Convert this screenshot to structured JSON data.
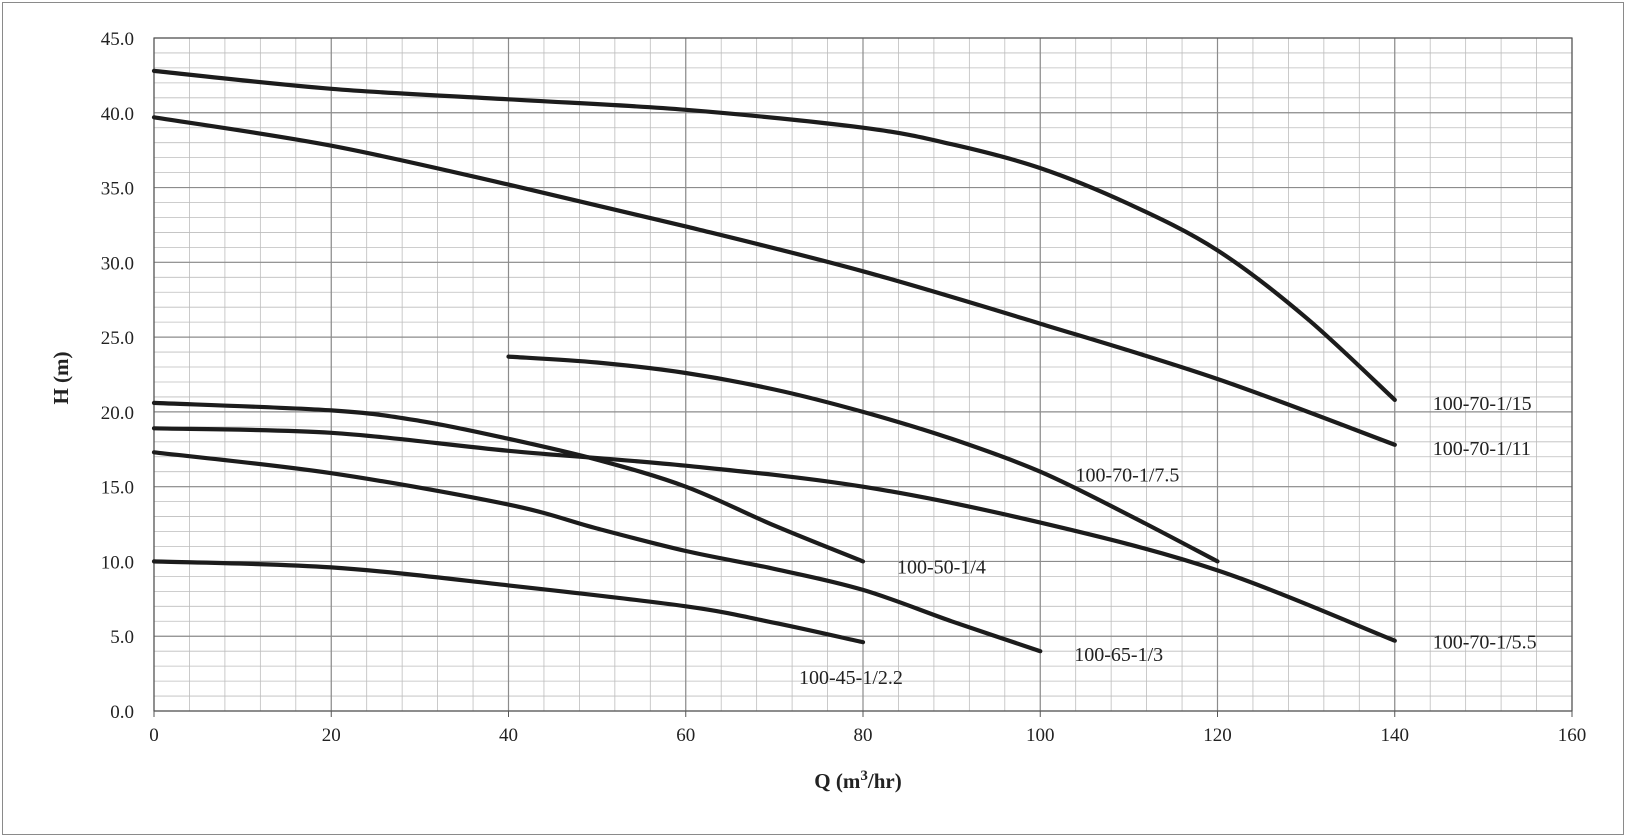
{
  "chart_data": {
    "type": "line",
    "xlabel": "Q (m3/hr)",
    "xlabel_base": "Q (m",
    "xlabel_sup": "3",
    "xlabel_tail": "/hr)",
    "ylabel": "H (m)",
    "xlim": [
      0,
      160
    ],
    "ylim": [
      0,
      45
    ],
    "x_ticks": [
      "0",
      "20",
      "40",
      "60",
      "80",
      "100",
      "120",
      "140",
      "160"
    ],
    "y_ticks": [
      "0.0",
      "5.0",
      "10.0",
      "15.0",
      "20.0",
      "25.0",
      "30.0",
      "35.0",
      "40.0",
      "45.0"
    ],
    "grid": true,
    "series": [
      {
        "name": "100-70-1/15",
        "x": [
          0,
          20,
          40,
          60,
          80,
          90,
          100,
          110,
          120,
          130,
          140
        ],
        "y": [
          42.8,
          41.6,
          40.9,
          40.2,
          39.0,
          37.9,
          36.3,
          33.9,
          30.8,
          26.3,
          20.8
        ]
      },
      {
        "name": "100-70-1/11",
        "x": [
          0,
          20,
          40,
          60,
          80,
          100,
          120,
          140
        ],
        "y": [
          39.7,
          37.8,
          35.2,
          32.4,
          29.4,
          25.9,
          22.2,
          17.8
        ]
      },
      {
        "name": "100-70-1/7.5",
        "x": [
          40,
          50,
          60,
          70,
          80,
          90,
          100,
          110,
          120
        ],
        "y": [
          23.7,
          23.3,
          22.6,
          21.5,
          20.0,
          18.2,
          16.0,
          13.1,
          10.0
        ]
      },
      {
        "name": "100-70-1/5.5",
        "x": [
          0,
          20,
          40,
          60,
          80,
          100,
          120,
          140
        ],
        "y": [
          18.9,
          18.6,
          17.4,
          16.4,
          15.0,
          12.6,
          9.4,
          4.7
        ]
      },
      {
        "name": "100-50-1/4",
        "x": [
          0,
          20,
          30,
          40,
          50,
          60,
          70,
          80
        ],
        "y": [
          20.6,
          20.1,
          19.4,
          18.2,
          16.8,
          15.0,
          12.4,
          10.0
        ]
      },
      {
        "name": "100-65-1/3",
        "x": [
          0,
          20,
          40,
          50,
          60,
          70,
          80,
          90,
          100
        ],
        "y": [
          17.3,
          15.9,
          13.8,
          12.2,
          10.7,
          9.5,
          8.1,
          6.0,
          4.0
        ]
      },
      {
        "name": "100-45-1/2.2",
        "x": [
          0,
          20,
          40,
          60,
          70,
          80
        ],
        "y": [
          10.0,
          9.6,
          8.4,
          7.0,
          5.9,
          4.6
        ]
      }
    ]
  }
}
